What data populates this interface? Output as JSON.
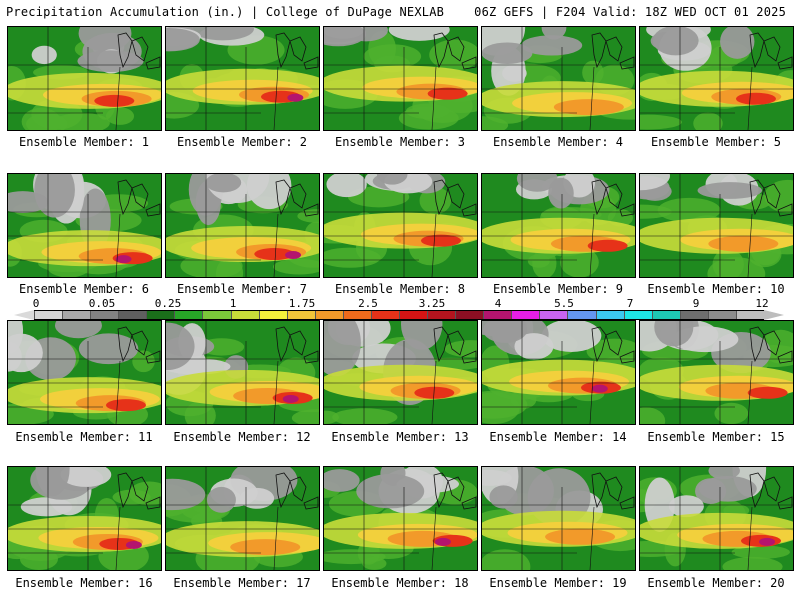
{
  "header": {
    "left": "Precipitation Accumulation (in.) | College of DuPage NEXLAB",
    "right": "06Z GEFS | F204 Valid: 18Z WED OCT 01 2025"
  },
  "legend": {
    "labels": [
      "0",
      "0.05",
      "0.25",
      "1",
      "1.75",
      "2.5",
      "3.25",
      "4",
      "5.5",
      "7",
      "9",
      "12"
    ],
    "colors": [
      "#d6d6d6",
      "#a9a9a9",
      "#828282",
      "#5f5f5f",
      "#1a6e1a",
      "#27a527",
      "#7bc83a",
      "#c8dc3a",
      "#f4f03c",
      "#f2c53a",
      "#f29a2a",
      "#ef6a1c",
      "#e63219",
      "#d61414",
      "#b4141e",
      "#8c0f23",
      "#b4146e",
      "#e61ee6",
      "#c864f0",
      "#6496f0",
      "#3cc8f0",
      "#1ee6e6",
      "#1ec8b4",
      "#6e6e6e",
      "#8c8c8c",
      "#bdbdbd"
    ]
  },
  "panels": [
    {
      "caption": "Ensemble Member: 1",
      "grey": 0.35,
      "band": 0.62,
      "peak": 0.78
    },
    {
      "caption": "Ensemble Member: 2",
      "grey": 0.15,
      "band": 0.58,
      "peak": 0.95
    },
    {
      "caption": "Ensemble Member: 3",
      "grey": 0.1,
      "band": 0.55,
      "peak": 0.8
    },
    {
      "caption": "Ensemble Member: 4",
      "grey": 0.45,
      "band": 0.7,
      "peak": 0.55
    },
    {
      "caption": "Ensemble Member: 5",
      "grey": 0.3,
      "band": 0.6,
      "peak": 0.75
    },
    {
      "caption": "Ensemble Member: 6",
      "grey": 0.5,
      "band": 0.72,
      "peak": 0.9
    },
    {
      "caption": "Ensemble Member: 7",
      "grey": 0.45,
      "band": 0.68,
      "peak": 0.85
    },
    {
      "caption": "Ensemble Member: 8",
      "grey": 0.1,
      "band": 0.55,
      "peak": 0.8
    },
    {
      "caption": "Ensemble Member: 9",
      "grey": 0.2,
      "band": 0.6,
      "peak": 0.82
    },
    {
      "caption": "Ensemble Member: 10",
      "grey": 0.2,
      "band": 0.6,
      "peak": 0.7
    },
    {
      "caption": "Ensemble Member: 11",
      "grey": 0.4,
      "band": 0.72,
      "peak": 0.78
    },
    {
      "caption": "Ensemble Member: 12",
      "grey": 0.45,
      "band": 0.65,
      "peak": 0.88
    },
    {
      "caption": "Ensemble Member: 13",
      "grey": 0.5,
      "band": 0.6,
      "peak": 0.8
    },
    {
      "caption": "Ensemble Member: 14",
      "grey": 0.3,
      "band": 0.55,
      "peak": 0.85
    },
    {
      "caption": "Ensemble Member: 15",
      "grey": 0.35,
      "band": 0.6,
      "peak": 0.82
    },
    {
      "caption": "Ensemble Member: 16",
      "grey": 0.4,
      "band": 0.65,
      "peak": 0.85
    },
    {
      "caption": "Ensemble Member: 17",
      "grey": 0.35,
      "band": 0.7,
      "peak": 0.6
    },
    {
      "caption": "Ensemble Member: 18",
      "grey": 0.3,
      "band": 0.62,
      "peak": 0.88
    },
    {
      "caption": "Ensemble Member: 19",
      "grey": 0.45,
      "band": 0.6,
      "peak": 0.7
    },
    {
      "caption": "Ensemble Member: 20",
      "grey": 0.4,
      "band": 0.62,
      "peak": 0.85
    }
  ]
}
